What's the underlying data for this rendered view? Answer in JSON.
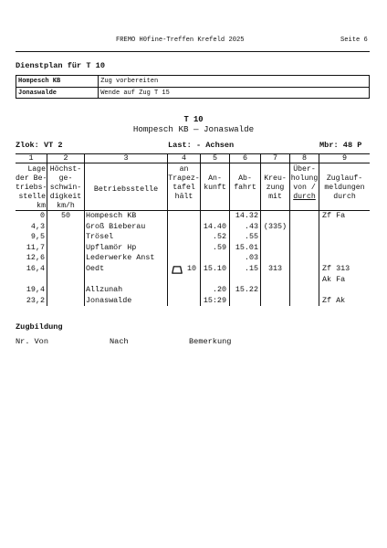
{
  "header": {
    "event": "FREMO H0fine-Treffen Krefeld 2025",
    "page": "Seite 6"
  },
  "duty_plan": {
    "title": "Dienstplan für T 10",
    "rows": [
      {
        "station": "Hompesch KB",
        "task": "Zug vorbereiten"
      },
      {
        "station": "Jonaswalde",
        "task": "Wende auf Zug T 15"
      }
    ]
  },
  "train": {
    "number": "T 10",
    "route": "Hompesch KB — Jonaswalde",
    "locomotive": "Zlok: VT 2",
    "load": "Last: - Achsen",
    "brake_percentage": "Mbr: 48 P"
  },
  "timetable": {
    "column_numbers": [
      "1",
      "2",
      "3",
      "4",
      "5",
      "6",
      "7",
      "8",
      "9"
    ],
    "column_headers": [
      [
        "Lage",
        "der Be-",
        "triebs-",
        "stelle",
        "km"
      ],
      [
        "Höchst-",
        "ge-",
        "schwin-",
        "digkeit",
        "km/h"
      ],
      [
        "Betriebsstelle"
      ],
      [
        "an",
        "Trapez-",
        "tafel",
        "hält"
      ],
      [
        "An-",
        "kunft"
      ],
      [
        "Ab-",
        "fahrt"
      ],
      [
        "Kreu-",
        "zung",
        "mit"
      ],
      [
        "Über-",
        "holung",
        "von /",
        "durch"
      ],
      [
        "Zuglauf-",
        "meldungen",
        "durch"
      ]
    ],
    "rows": [
      {
        "km": "0",
        "speed": "50",
        "station": "Hompesch KB",
        "departure": "14.32",
        "reports": [
          "Zf Fa"
        ]
      },
      {
        "km": "4,3",
        "station": "Groß Bieberau",
        "arrival": "14.40",
        "departure": ".43",
        "crossing": "(335)"
      },
      {
        "km": "9,5",
        "station": "Trösel",
        "arrival": ".52",
        "departure": ".55"
      },
      {
        "km": "11,7",
        "station": "Upflamör Hp",
        "arrival": ".59",
        "departure": "15.01"
      },
      {
        "km": "12,6",
        "station": "Lederwerke Anst",
        "departure": ".03"
      },
      {
        "km": "16,4",
        "station": "Oedt",
        "trapez_icon": "trapez-sign-icon",
        "trapez": "10",
        "arrival": "15.10",
        "departure": ".15",
        "crossing": "313",
        "reports": [
          "Zf 313",
          "Ak Fa"
        ]
      },
      {
        "km": "19,4",
        "station": "Allzunah",
        "arrival": ".20",
        "departure": "15.22"
      },
      {
        "km": "23,2",
        "station": "Jonaswalde",
        "arrival": "15:29",
        "reports": [
          "Zf Ak"
        ]
      }
    ]
  },
  "train_formation": {
    "title": "Zugbildung",
    "columns": {
      "number": "Nr.",
      "from": "Von",
      "to": "Nach",
      "remark": "Bemerkung"
    }
  }
}
